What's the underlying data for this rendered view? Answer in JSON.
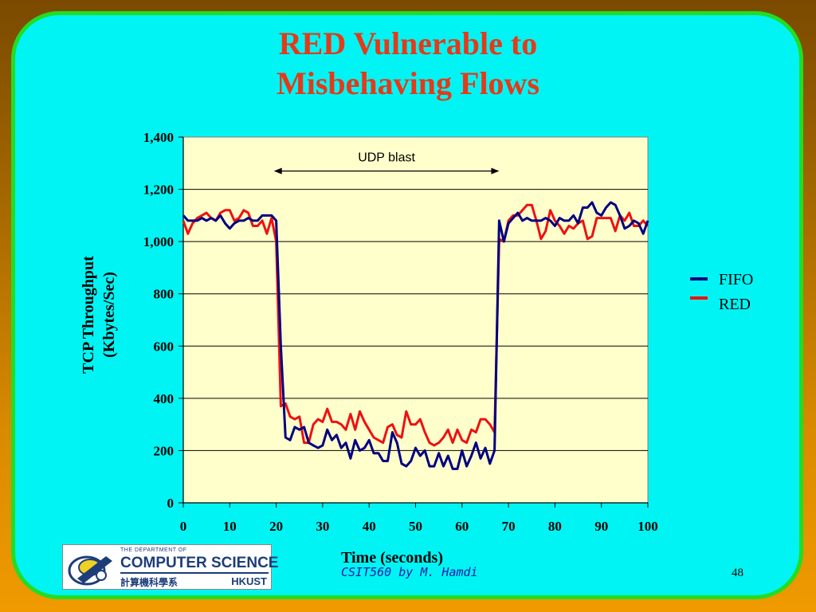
{
  "slide": {
    "title_line1": "RED Vulnerable to",
    "title_line2": "Misbehaving Flows",
    "footer": "CSIT560 by M. Hamdi",
    "page_number": "48",
    "colors": {
      "background": "#00f4f4",
      "border": "#22dd22",
      "title": "#e43a1a"
    }
  },
  "logo": {
    "line1": "THE DEPARTMENT OF",
    "line2": "COMPUTER SCIENCE",
    "line3": "計算機科學系",
    "line4": "HKUST"
  },
  "chart_data": {
    "type": "line",
    "title": "",
    "xlabel": "Time (seconds)",
    "ylabel_line1": "TCP Throughput",
    "ylabel_line2": "(Kbytes/Sec)",
    "xlim": [
      0,
      100
    ],
    "ylim": [
      0,
      1400
    ],
    "x_ticks": [
      0,
      10,
      20,
      30,
      40,
      50,
      60,
      70,
      80,
      90,
      100
    ],
    "x_tick_labels": [
      "0",
      "10",
      "20",
      "30",
      "40",
      "50",
      "60",
      "70",
      "80",
      "90",
      "100"
    ],
    "y_ticks": [
      0,
      200,
      400,
      600,
      800,
      1000,
      1200,
      1400
    ],
    "y_tick_labels": [
      "0",
      "200",
      "400",
      "600",
      "800",
      "1,000",
      "1,200",
      "1,400"
    ],
    "grid": "horizontal",
    "plot_background": "#ffffcc",
    "legend_position": "right",
    "annotation": {
      "text": "UDP blast",
      "x_start": 19.5,
      "x_end": 68,
      "y": 1270
    },
    "x": [
      0,
      1,
      2,
      3,
      4,
      5,
      6,
      7,
      8,
      9,
      10,
      11,
      12,
      13,
      14,
      15,
      16,
      17,
      18,
      19,
      20,
      21,
      22,
      23,
      24,
      25,
      26,
      27,
      28,
      29,
      30,
      31,
      32,
      33,
      34,
      35,
      36,
      37,
      38,
      39,
      40,
      41,
      42,
      43,
      44,
      45,
      46,
      47,
      48,
      49,
      50,
      51,
      52,
      53,
      54,
      55,
      56,
      57,
      58,
      59,
      60,
      61,
      62,
      63,
      64,
      65,
      66,
      67,
      68,
      69,
      70,
      71,
      72,
      73,
      74,
      75,
      76,
      77,
      78,
      79,
      80,
      81,
      82,
      83,
      84,
      85,
      86,
      87,
      88,
      89,
      90,
      91,
      92,
      93,
      94,
      95,
      96,
      97,
      98,
      99,
      100
    ],
    "series": [
      {
        "name": "FIFO",
        "color": "#000080",
        "values": [
          1100,
          1080,
          1080,
          1080,
          1090,
          1080,
          1090,
          1080,
          1100,
          1070,
          1050,
          1070,
          1080,
          1080,
          1090,
          1080,
          1080,
          1100,
          1100,
          1100,
          1080,
          600,
          250,
          240,
          290,
          280,
          290,
          230,
          220,
          210,
          220,
          280,
          240,
          260,
          210,
          230,
          170,
          240,
          200,
          210,
          240,
          190,
          190,
          160,
          160,
          270,
          230,
          150,
          140,
          160,
          210,
          180,
          200,
          140,
          140,
          190,
          140,
          180,
          130,
          130,
          200,
          140,
          180,
          230,
          170,
          210,
          150,
          200,
          1080,
          1000,
          1070,
          1090,
          1110,
          1080,
          1090,
          1080,
          1080,
          1080,
          1090,
          1080,
          1060,
          1090,
          1080,
          1080,
          1100,
          1070,
          1130,
          1130,
          1150,
          1110,
          1100,
          1130,
          1150,
          1140,
          1100,
          1050,
          1060,
          1080,
          1070,
          1030,
          1080
        ]
      },
      {
        "name": "RED",
        "color": "#ee1111",
        "values": [
          1080,
          1030,
          1070,
          1090,
          1100,
          1110,
          1090,
          1080,
          1110,
          1120,
          1120,
          1080,
          1090,
          1120,
          1110,
          1060,
          1060,
          1080,
          1030,
          1090,
          1000,
          370,
          380,
          330,
          320,
          330,
          230,
          230,
          300,
          320,
          310,
          360,
          310,
          310,
          300,
          280,
          340,
          280,
          350,
          310,
          280,
          250,
          240,
          230,
          290,
          300,
          260,
          250,
          350,
          300,
          300,
          320,
          270,
          230,
          220,
          230,
          250,
          280,
          230,
          280,
          240,
          230,
          280,
          270,
          320,
          320,
          300,
          270,
          1010,
          1000,
          1080,
          1100,
          1100,
          1120,
          1140,
          1140,
          1080,
          1010,
          1040,
          1120,
          1080,
          1060,
          1030,
          1060,
          1050,
          1070,
          1080,
          1010,
          1020,
          1090,
          1090,
          1090,
          1090,
          1040,
          1100,
          1080,
          1110,
          1060,
          1060,
          1080,
          1060
        ]
      }
    ]
  }
}
